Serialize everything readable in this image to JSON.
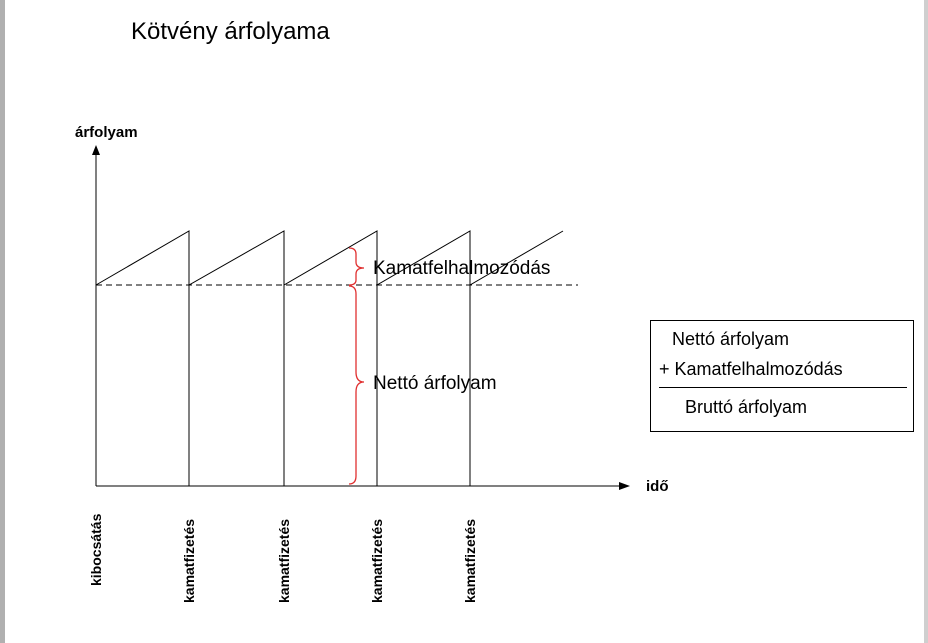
{
  "title": "Kötvény árfolyama",
  "axes": {
    "y_label": "árfolyam",
    "x_label": "idő"
  },
  "events": [
    {
      "label": "kibocsátás"
    },
    {
      "label": "kamatfizetés"
    },
    {
      "label": "kamatfizetés"
    },
    {
      "label": "kamatfizetés"
    },
    {
      "label": "kamatfizetés"
    }
  ],
  "annotations": {
    "accrual": "Kamatfelhalmozódás",
    "net_price": "Nettó árfolyam"
  },
  "legend": {
    "line1": "Nettó árfolyam",
    "line2": "+ Kamatfelhalmozódás",
    "line3": "Bruttó árfolyam"
  },
  "colors": {
    "brace": "#e03030",
    "lines": "#000000"
  }
}
